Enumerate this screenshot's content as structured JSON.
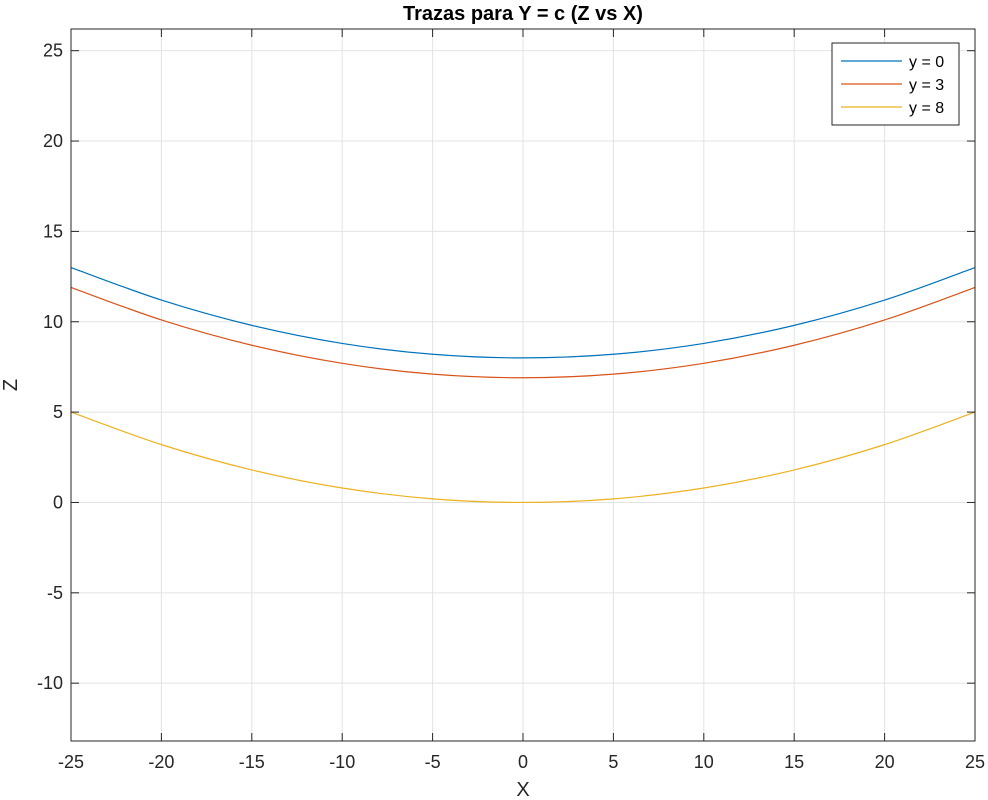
{
  "chart_data": {
    "type": "line",
    "title": "Trazas para Y = c (Z vs X)",
    "xlabel": "X",
    "ylabel": "Z",
    "xlim": [
      -25,
      25
    ],
    "ylim": [
      -13.2,
      26.2
    ],
    "xticks": [
      -25,
      -20,
      -15,
      -10,
      -5,
      0,
      5,
      10,
      15,
      20,
      25
    ],
    "yticks": [
      -10,
      -5,
      0,
      5,
      10,
      15,
      20,
      25
    ],
    "xtick_labels": [
      "-25",
      "-20",
      "-15",
      "-10",
      "-5",
      "0",
      "5",
      "10",
      "15",
      "20",
      "25"
    ],
    "ytick_labels": [
      "-10",
      "-5",
      "0",
      "5",
      "10",
      "15",
      "20",
      "25"
    ],
    "grid": true,
    "legend_position": "top-right",
    "x": [
      -25,
      -20,
      -15,
      -10,
      -5,
      0,
      5,
      10,
      15,
      20,
      25
    ],
    "series": [
      {
        "name": "y = 0",
        "color": "#0072BD",
        "values": [
          13.0,
          11.2,
          9.8,
          8.8,
          8.2,
          8.0,
          8.2,
          8.8,
          9.8,
          11.2,
          13.0
        ]
      },
      {
        "name": "y = 3",
        "color": "#D95319",
        "values": [
          11.9,
          10.1,
          8.7,
          7.7,
          7.1,
          6.9,
          7.1,
          7.7,
          8.7,
          10.1,
          11.9
        ]
      },
      {
        "name": "y = 8",
        "color": "#EDB120",
        "values": [
          5.0,
          3.2,
          1.8,
          0.8,
          0.2,
          0.0,
          0.2,
          0.8,
          1.8,
          3.2,
          5.0
        ]
      }
    ]
  }
}
